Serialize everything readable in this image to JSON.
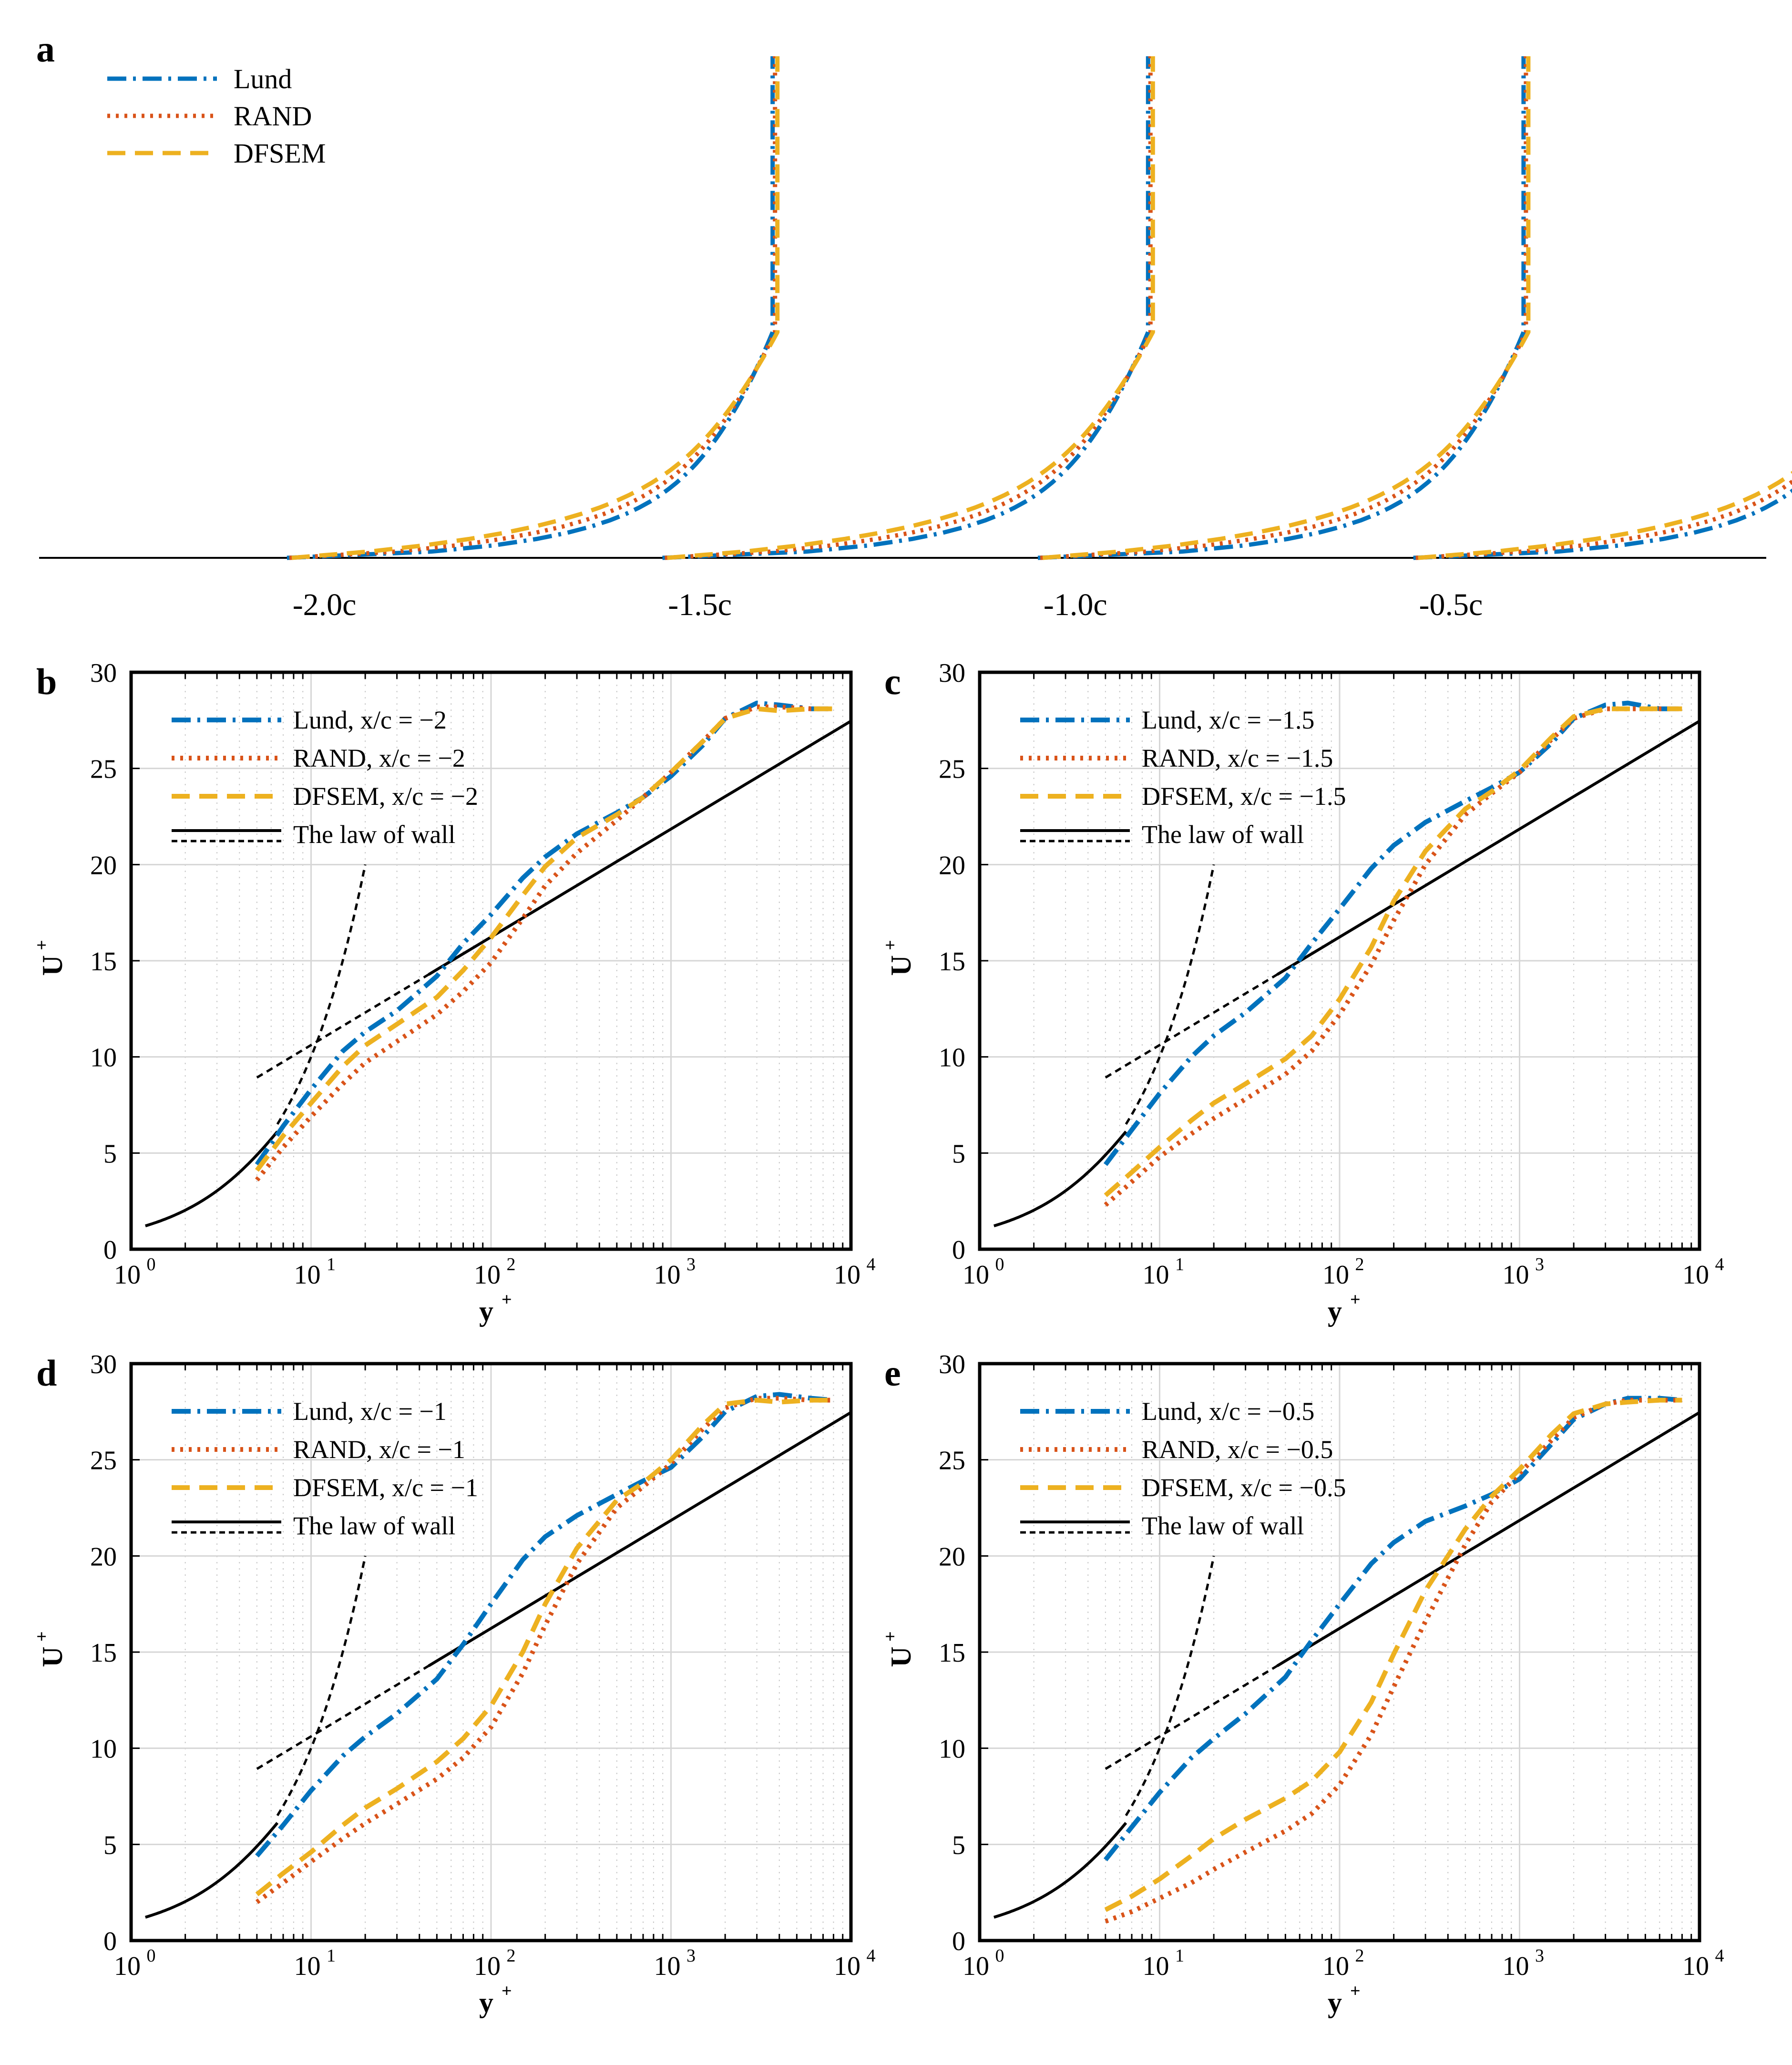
{
  "colors": {
    "lund": "#0072BD",
    "rand": "#D95319",
    "dfsem": "#EDB120",
    "law": "#000000",
    "grid": "#d0d0d0"
  },
  "panel_letters": [
    "a",
    "b",
    "c",
    "d",
    "e"
  ],
  "chart_data": [
    {
      "id": "a",
      "type": "line",
      "title": "",
      "xlabel": "",
      "ylabel": "",
      "x_tick_labels": [
        "-2.0c",
        "-1.5c",
        "-1.0c",
        "-0.5c"
      ],
      "x_tick_values": [
        -2.0,
        -1.5,
        -1.0,
        -0.5
      ],
      "xlim": [
        -2.38,
        -0.08
      ],
      "profile_offsets_note": "velocity profiles plotted at stations x/c = -2, -1.5, -1, -0.5",
      "stations": [
        -2.0,
        -1.5,
        -1.0,
        -0.5
      ],
      "legend_position": "top-left",
      "series": [
        {
          "name": "Lund",
          "style": "dashdot",
          "color": "#0072BD"
        },
        {
          "name": "RAND",
          "style": "dotted",
          "color": "#D95319"
        },
        {
          "name": "DFSEM",
          "style": "dashed",
          "color": "#EDB120"
        }
      ]
    },
    {
      "id": "b",
      "type": "line",
      "xscale": "log",
      "xlim": [
        1,
        10000
      ],
      "ylim": [
        0,
        30
      ],
      "xlabel": "y",
      "xlabel_sup": "+",
      "ylabel": "U",
      "ylabel_sup": "+",
      "x_ticks": [
        {
          "base": "10",
          "exp": "0"
        },
        {
          "base": "10",
          "exp": "1"
        },
        {
          "base": "10",
          "exp": "2"
        },
        {
          "base": "10",
          "exp": "3"
        },
        {
          "base": "10",
          "exp": "4"
        }
      ],
      "y_ticks": [
        0,
        5,
        10,
        15,
        20,
        25,
        30
      ],
      "grid": true,
      "legend_position": "top-left",
      "series": [
        {
          "name": "Lund, x/c = −2",
          "style": "dashdot",
          "color": "#0072BD",
          "x": [
            5,
            7,
            10,
            15,
            20,
            30,
            50,
            70,
            100,
            150,
            200,
            300,
            500,
            700,
            1000,
            1500,
            2000,
            3000,
            4000,
            6000,
            8000
          ],
          "y": [
            4.4,
            6.4,
            8.3,
            10.3,
            11.3,
            12.4,
            14.2,
            15.9,
            17.4,
            19.3,
            20.4,
            21.6,
            22.7,
            23.5,
            24.6,
            26.2,
            27.6,
            28.4,
            28.3,
            28.1,
            28.1
          ]
        },
        {
          "name": "RAND, x/c = −2",
          "style": "dotted",
          "color": "#D95319",
          "x": [
            5,
            7,
            10,
            15,
            20,
            30,
            50,
            70,
            100,
            150,
            200,
            300,
            500,
            700,
            1000,
            1500,
            2000,
            3000,
            4000,
            6000,
            8000
          ],
          "y": [
            3.6,
            5.3,
            6.9,
            8.6,
            9.7,
            10.8,
            12.2,
            13.4,
            14.9,
            17.2,
            18.9,
            20.6,
            22.3,
            23.5,
            24.8,
            26.4,
            27.6,
            28.2,
            28.2,
            28.1,
            28.1
          ]
        },
        {
          "name": "DFSEM, x/c = −2",
          "style": "dashed",
          "color": "#EDB120",
          "x": [
            5,
            7,
            10,
            15,
            20,
            30,
            50,
            70,
            100,
            150,
            200,
            300,
            500,
            700,
            1000,
            1500,
            2000,
            3000,
            4000,
            6000,
            8000
          ],
          "y": [
            4.1,
            5.9,
            7.6,
            9.5,
            10.6,
            11.7,
            13.1,
            14.5,
            16.2,
            18.4,
            19.9,
            21.4,
            22.6,
            23.5,
            24.8,
            26.4,
            27.6,
            28.1,
            28.0,
            28.1,
            28.1
          ]
        },
        {
          "name": "The law of wall",
          "style": "solid",
          "color": "#000000",
          "law": true
        }
      ]
    },
    {
      "id": "c",
      "type": "line",
      "xscale": "log",
      "xlim": [
        1,
        10000
      ],
      "ylim": [
        0,
        30
      ],
      "xlabel": "y",
      "xlabel_sup": "+",
      "ylabel": "U",
      "ylabel_sup": "+",
      "x_ticks": [
        {
          "base": "10",
          "exp": "0"
        },
        {
          "base": "10",
          "exp": "1"
        },
        {
          "base": "10",
          "exp": "2"
        },
        {
          "base": "10",
          "exp": "3"
        },
        {
          "base": "10",
          "exp": "4"
        }
      ],
      "y_ticks": [
        0,
        5,
        10,
        15,
        20,
        25,
        30
      ],
      "grid": true,
      "legend_position": "top-left",
      "series": [
        {
          "name": "Lund, x/c = −1.5",
          "style": "dashdot",
          "color": "#0072BD",
          "x": [
            5,
            7,
            10,
            15,
            20,
            30,
            50,
            70,
            100,
            150,
            200,
            300,
            500,
            700,
            1000,
            1500,
            2000,
            3000,
            4000,
            6000,
            8000
          ],
          "y": [
            4.4,
            6.2,
            8.1,
            10.0,
            11.1,
            12.3,
            14.1,
            15.9,
            17.7,
            19.8,
            21.0,
            22.2,
            23.3,
            24.0,
            24.8,
            26.3,
            27.6,
            28.3,
            28.4,
            28.1,
            28.1
          ]
        },
        {
          "name": "RAND, x/c = −1.5",
          "style": "dotted",
          "color": "#D95319",
          "x": [
            5,
            7,
            10,
            15,
            20,
            30,
            50,
            70,
            100,
            150,
            200,
            300,
            500,
            700,
            1000,
            1500,
            2000,
            3000,
            4000,
            6000,
            8000
          ],
          "y": [
            2.3,
            3.5,
            4.8,
            6.0,
            6.8,
            7.8,
            9.1,
            10.3,
            12.2,
            14.8,
            17.1,
            20.0,
            22.6,
            23.7,
            24.8,
            26.5,
            27.6,
            28.1,
            28.1,
            28.1,
            28.1
          ]
        },
        {
          "name": "DFSEM, x/c = −1.5",
          "style": "dashed",
          "color": "#EDB120",
          "x": [
            5,
            7,
            10,
            15,
            20,
            30,
            50,
            70,
            100,
            150,
            200,
            300,
            500,
            700,
            1000,
            1500,
            2000,
            3000,
            4000,
            6000,
            8000
          ],
          "y": [
            2.8,
            4.0,
            5.3,
            6.7,
            7.6,
            8.6,
            9.9,
            11.1,
            13.0,
            15.7,
            18.1,
            20.7,
            22.9,
            23.8,
            24.9,
            26.6,
            27.7,
            28.1,
            28.1,
            28.1,
            28.1
          ]
        },
        {
          "name": "The law of wall",
          "style": "solid",
          "color": "#000000",
          "law": true
        }
      ]
    },
    {
      "id": "d",
      "type": "line",
      "xscale": "log",
      "xlim": [
        1,
        10000
      ],
      "ylim": [
        0,
        30
      ],
      "xlabel": "y",
      "xlabel_sup": "+",
      "ylabel": "U",
      "ylabel_sup": "+",
      "x_ticks": [
        {
          "base": "10",
          "exp": "0"
        },
        {
          "base": "10",
          "exp": "1"
        },
        {
          "base": "10",
          "exp": "2"
        },
        {
          "base": "10",
          "exp": "3"
        },
        {
          "base": "10",
          "exp": "4"
        }
      ],
      "y_ticks": [
        0,
        5,
        10,
        15,
        20,
        25,
        30
      ],
      "grid": true,
      "legend_position": "top-left",
      "series": [
        {
          "name": "Lund, x/c = −1",
          "style": "dashdot",
          "color": "#0072BD",
          "x": [
            5,
            7,
            10,
            15,
            20,
            30,
            50,
            70,
            100,
            150,
            200,
            300,
            500,
            700,
            1000,
            1500,
            2000,
            3000,
            4000,
            6000,
            8000
          ],
          "y": [
            4.4,
            6.0,
            7.8,
            9.6,
            10.6,
            11.8,
            13.6,
            15.4,
            17.5,
            19.8,
            21.0,
            22.1,
            23.2,
            23.9,
            24.6,
            26.2,
            27.5,
            28.3,
            28.4,
            28.2,
            28.1
          ]
        },
        {
          "name": "RAND, x/c = −1",
          "style": "dotted",
          "color": "#D95319",
          "x": [
            5,
            7,
            10,
            15,
            20,
            30,
            50,
            70,
            100,
            150,
            200,
            300,
            500,
            700,
            1000,
            1500,
            2000,
            3000,
            4000,
            6000,
            8000
          ],
          "y": [
            2.0,
            3.0,
            4.1,
            5.3,
            6.1,
            7.1,
            8.4,
            9.5,
            11.1,
            13.9,
            16.4,
            19.6,
            22.5,
            23.6,
            24.8,
            26.6,
            27.7,
            28.2,
            28.2,
            28.1,
            28.1
          ]
        },
        {
          "name": "DFSEM, x/c = −1",
          "style": "dashed",
          "color": "#EDB120",
          "x": [
            5,
            7,
            10,
            15,
            20,
            30,
            50,
            70,
            100,
            150,
            200,
            300,
            500,
            700,
            1000,
            1500,
            2000,
            3000,
            4000,
            6000,
            8000
          ],
          "y": [
            2.4,
            3.5,
            4.6,
            6.0,
            6.9,
            7.9,
            9.3,
            10.5,
            12.2,
            15.0,
            17.5,
            20.4,
            22.9,
            23.8,
            25.0,
            26.8,
            27.9,
            28.1,
            28.0,
            28.1,
            28.1
          ]
        },
        {
          "name": "The law of wall",
          "style": "solid",
          "color": "#000000",
          "law": true
        }
      ]
    },
    {
      "id": "e",
      "type": "line",
      "xscale": "log",
      "xlim": [
        1,
        10000
      ],
      "ylim": [
        0,
        30
      ],
      "xlabel": "y",
      "xlabel_sup": "+",
      "ylabel": "U",
      "ylabel_sup": "+",
      "x_ticks": [
        {
          "base": "10",
          "exp": "0"
        },
        {
          "base": "10",
          "exp": "1"
        },
        {
          "base": "10",
          "exp": "2"
        },
        {
          "base": "10",
          "exp": "3"
        },
        {
          "base": "10",
          "exp": "4"
        }
      ],
      "y_ticks": [
        0,
        5,
        10,
        15,
        20,
        25,
        30
      ],
      "grid": true,
      "legend_position": "top-left",
      "series": [
        {
          "name": "Lund, x/c = −0.5",
          "style": "dashdot",
          "color": "#0072BD",
          "x": [
            5,
            7,
            10,
            15,
            20,
            30,
            50,
            70,
            100,
            150,
            200,
            300,
            500,
            700,
            1000,
            1500,
            2000,
            3000,
            4000,
            6000,
            8000
          ],
          "y": [
            4.2,
            5.9,
            7.7,
            9.5,
            10.5,
            11.8,
            13.7,
            15.6,
            17.5,
            19.6,
            20.7,
            21.8,
            22.6,
            23.2,
            24.0,
            25.8,
            27.1,
            27.9,
            28.2,
            28.2,
            28.1
          ]
        },
        {
          "name": "RAND, x/c = −0.5",
          "style": "dotted",
          "color": "#D95319",
          "x": [
            5,
            7,
            10,
            15,
            20,
            30,
            50,
            70,
            100,
            150,
            200,
            300,
            500,
            700,
            1000,
            1500,
            2000,
            3000,
            4000,
            6000,
            8000
          ],
          "y": [
            1.0,
            1.5,
            2.2,
            3.0,
            3.7,
            4.6,
            5.7,
            6.6,
            8.1,
            10.7,
            13.2,
            16.6,
            20.6,
            22.8,
            24.3,
            26.0,
            27.2,
            27.9,
            28.1,
            28.1,
            28.1
          ]
        },
        {
          "name": "DFSEM, x/c = −0.5",
          "style": "dashed",
          "color": "#EDB120",
          "x": [
            5,
            7,
            10,
            15,
            20,
            30,
            50,
            70,
            100,
            150,
            200,
            300,
            500,
            700,
            1000,
            1500,
            2000,
            3000,
            4000,
            6000,
            8000
          ],
          "y": [
            1.6,
            2.3,
            3.2,
            4.4,
            5.3,
            6.3,
            7.4,
            8.3,
            9.8,
            12.4,
            14.9,
            18.2,
            21.4,
            23.1,
            24.5,
            26.3,
            27.4,
            27.9,
            28.0,
            28.1,
            28.1
          ]
        },
        {
          "name": "The law of wall",
          "style": "solid",
          "color": "#000000",
          "law": true
        }
      ]
    }
  ]
}
